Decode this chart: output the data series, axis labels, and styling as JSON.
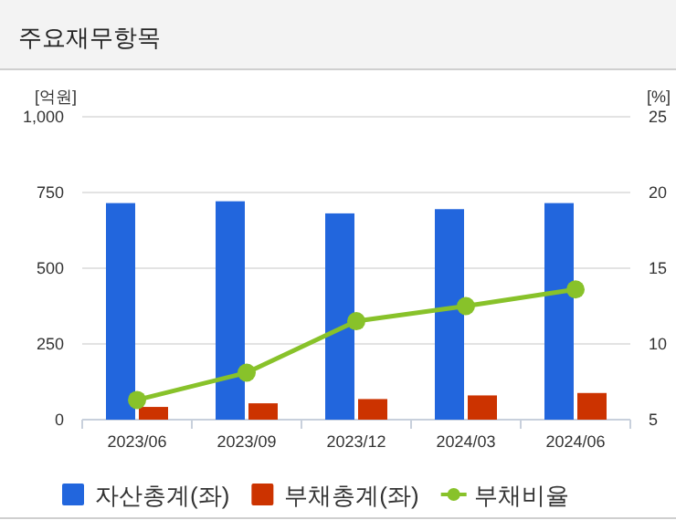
{
  "chart_data": {
    "type": "bar",
    "title": "주요재무항목",
    "ylabel": "[억원]",
    "y2label": "[%]",
    "categories": [
      "2023/06",
      "2023/09",
      "2023/12",
      "2024/03",
      "2024/06"
    ],
    "series": [
      {
        "name": "자산총계(좌)",
        "color": "#2266dd",
        "values": [
          715,
          721,
          681,
          695,
          715
        ]
      },
      {
        "name": "부채총계(좌)",
        "color": "#cc3300",
        "values": [
          42,
          54,
          68,
          80,
          88
        ]
      },
      {
        "name": "부채비율",
        "type": "line",
        "axis": "y2",
        "color": "#88c22a",
        "marker": "circle",
        "values": [
          6.3,
          8.1,
          11.5,
          12.5,
          13.6
        ]
      }
    ],
    "ylim": [
      0,
      1000
    ],
    "yticks": [
      0,
      250,
      500,
      750,
      {
        "value": 1000,
        "label": "1,000"
      }
    ],
    "y2lim": [
      5,
      25
    ],
    "y2ticks": [
      5,
      10,
      15,
      20,
      25
    ],
    "grid": "y",
    "legend": "bottom"
  }
}
